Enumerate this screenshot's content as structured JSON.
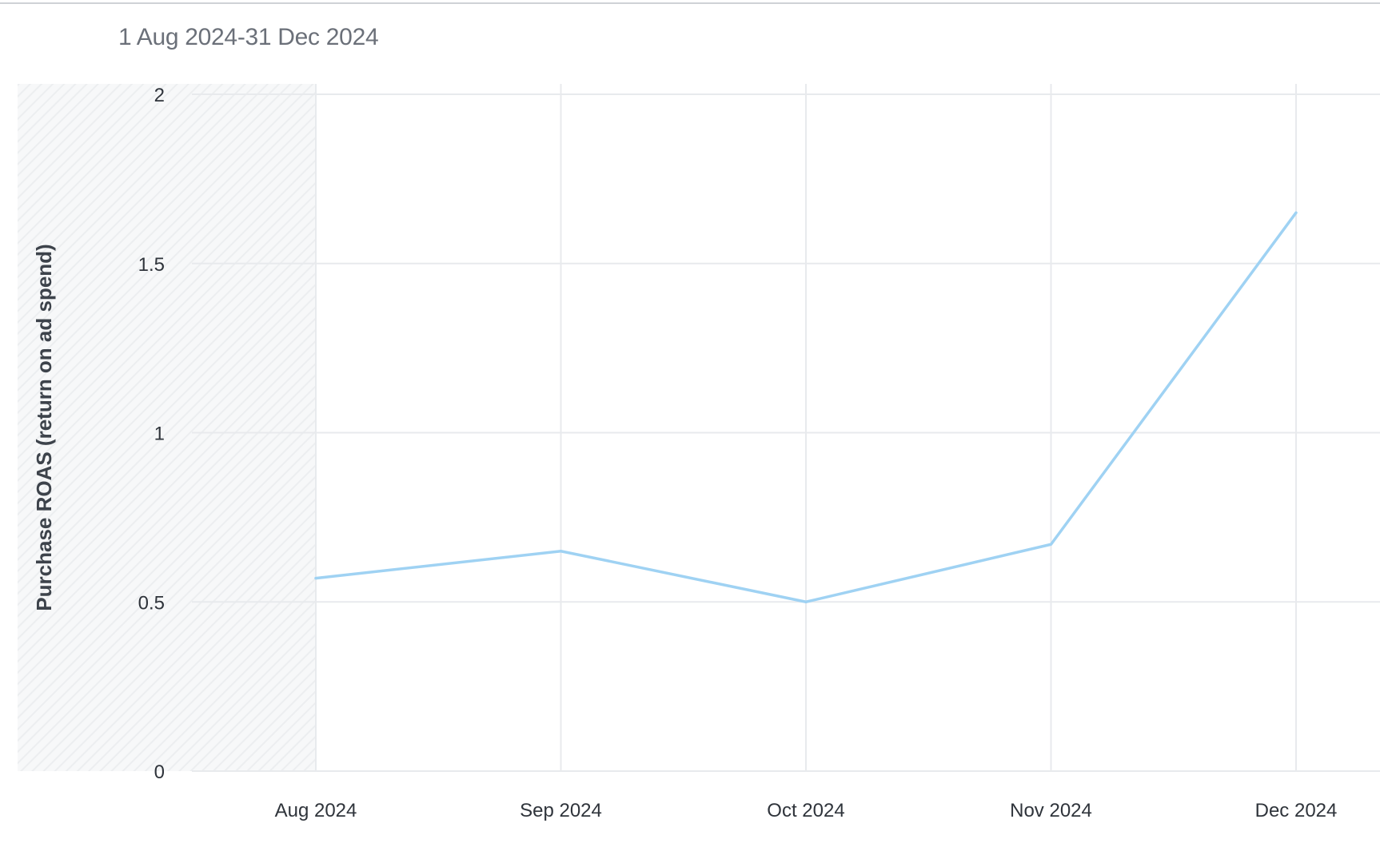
{
  "header": {
    "date_range": "1 Aug 2024-31 Dec 2024"
  },
  "colors": {
    "line": "#9fd2f3",
    "grid": "#e8eaed",
    "hatch": "#eef0f2"
  },
  "chart_data": {
    "type": "line",
    "title": "",
    "xlabel": "",
    "ylabel": "Purchase ROAS (return on ad spend)",
    "categories": [
      "Aug 2024",
      "Sep 2024",
      "Oct 2024",
      "Nov 2024",
      "Dec 2024"
    ],
    "series": [
      {
        "values": [
          0.57,
          0.65,
          0.5,
          0.67,
          1.65
        ]
      }
    ],
    "ylim": [
      0,
      2
    ],
    "yticks": [
      0,
      0.5,
      1,
      1.5,
      2
    ],
    "ytick_labels": [
      "0",
      "0.5",
      "1",
      "1.5",
      "2"
    ],
    "grid": true,
    "shaded_region": "left of Aug 2024"
  }
}
